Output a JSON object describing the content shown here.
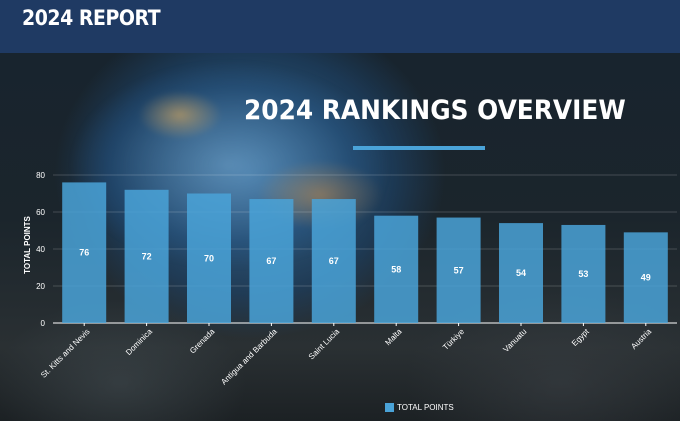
{
  "header": {
    "title": "2024 REPORT"
  },
  "chart_data": {
    "type": "bar",
    "title": "2024 RANKINGS OVERVIEW",
    "ylabel": "TOTAL POINTS",
    "xlabel": "",
    "ylim": [
      0,
      80
    ],
    "yticks": [
      0,
      20,
      40,
      60,
      80
    ],
    "categories": [
      "St. Kitts and Nevis",
      "Dominica",
      "Grenada",
      "Antigua and Barbuda",
      "Saint Lucia",
      "Malta",
      "Türkiye",
      "Vanuatu",
      "Egypt",
      "Austria"
    ],
    "series": [
      {
        "name": "TOTAL POINTS",
        "values": [
          76,
          72,
          70,
          67,
          67,
          58,
          57,
          54,
          53,
          49
        ]
      }
    ],
    "legend": "bottom",
    "grid": true,
    "bar_color": "#4aa3d8"
  }
}
